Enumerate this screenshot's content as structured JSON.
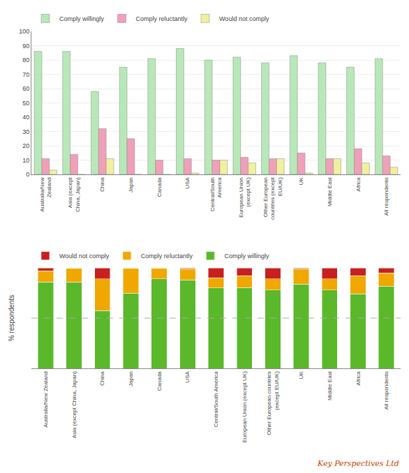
{
  "chart_data": [
    {
      "type": "bar",
      "categories": [
        "Australia/New\nZealand",
        "Asia (except\nChina, Japan)",
        "China",
        "Japan",
        "Canada",
        "USA",
        "Central/South\nAmerica",
        "European Union\n(except UK)",
        "Other European\ncountries (except\nEU/UK)",
        "UK",
        "Middle East",
        "Africa",
        "All respondents"
      ],
      "series": [
        {
          "name": "Comply willingly",
          "color": "#b8e8b8",
          "values": [
            86,
            86,
            58,
            75,
            81,
            88,
            80,
            82,
            78,
            83,
            78,
            75,
            81
          ]
        },
        {
          "name": "Comply reluctantly",
          "color": "#f0a0b8",
          "values": [
            11,
            14,
            32,
            25,
            10,
            11,
            10,
            12,
            11,
            15,
            11,
            18,
            13
          ]
        },
        {
          "name": "Would not comply",
          "color": "#f0f0a0",
          "values": [
            3,
            0,
            11,
            0,
            0,
            1,
            10,
            8,
            11,
            1,
            11,
            8,
            5
          ]
        }
      ],
      "ylim": [
        0,
        100
      ],
      "yticks": [
        0,
        10,
        20,
        30,
        40,
        50,
        60,
        70,
        80,
        90,
        100
      ],
      "grid": true,
      "legend": "upper left"
    },
    {
      "type": "bar",
      "stacked": true,
      "categories": [
        "Australia/New Zealand",
        "Asia (except China, Japan)",
        "China",
        "Japan",
        "Canada",
        "USA",
        "Central/South America",
        "European Union (except UK)",
        "Other European countries\n(except EU/UK)",
        "UK",
        "Middle East",
        "Africa",
        "All respondents"
      ],
      "series": [
        {
          "name": "Comply willingly",
          "color": "#5ab82a",
          "values": [
            86,
            86,
            57.4257,
            75,
            89.011,
            88,
            80,
            80.3922,
            78,
            83.8384,
            78,
            74.2574,
            81.8182
          ]
        },
        {
          "name": "Comply reluctantly",
          "color": "#f0a800",
          "values": [
            11,
            14,
            31.6832,
            25,
            10.989,
            11,
            10,
            11.7647,
            11,
            15.1515,
            11,
            17.8218,
            13.1313
          ]
        },
        {
          "name": "Would not comply",
          "color": "#c82020",
          "values": [
            3,
            0,
            10.8911,
            0,
            0,
            1,
            10,
            7.8431,
            11,
            1.0101,
            11,
            7.9208,
            5.0505
          ]
        }
      ],
      "ylabel": "% respondents",
      "ylim": [
        0,
        100
      ],
      "yticks": [],
      "tick_labels": "x",
      "grid": false,
      "legend": "upper left",
      "hline": 50,
      "annotations": [
        {
          "text": "Key Perspectives Ltd",
          "color": "#cc4400"
        }
      ]
    }
  ]
}
